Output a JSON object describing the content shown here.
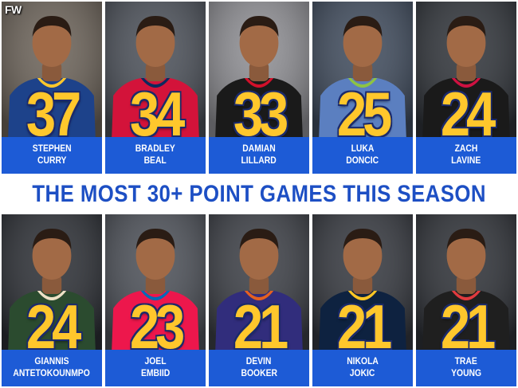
{
  "brand": "FW",
  "title": "THE MOST 30+ POINT GAMES THIS SEASON",
  "players": [
    {
      "first": "STEPHEN",
      "last": "CURRY",
      "count": "37",
      "jersey": "#1d428a",
      "trim": "#ffc72c",
      "bg": "#6b6258"
    },
    {
      "first": "BRADLEY",
      "last": "BEAL",
      "count": "34",
      "jersey": "#d3133a",
      "trim": "#0b2a5e",
      "bg": "#4a4f58"
    },
    {
      "first": "DAMIAN",
      "last": "LILLARD",
      "count": "33",
      "jersey": "#1a1a1a",
      "trim": "#d2102a",
      "bg": "#8e8e93"
    },
    {
      "first": "LUKA",
      "last": "DONCIC",
      "count": "25",
      "jersey": "#5b7fc0",
      "trim": "#8ec343",
      "bg": "#3e4a5c"
    },
    {
      "first": "ZACH",
      "last": "LAVINE",
      "count": "24",
      "jersey": "#1a1a1a",
      "trim": "#ce1141",
      "bg": "#2e3238"
    },
    {
      "first": "GIANNIS",
      "last": "ANTETOKOUNMPO",
      "count": "24",
      "jersey": "#2b4b2f",
      "trim": "#eee1c6",
      "bg": "#2a2d33"
    },
    {
      "first": "JOEL",
      "last": "EMBIID",
      "count": "23",
      "jersey": "#ed174c",
      "trim": "#006bb6",
      "bg": "#4b4f57"
    },
    {
      "first": "DEVIN",
      "last": "BOOKER",
      "count": "21",
      "jersey": "#312d7c",
      "trim": "#e56020",
      "bg": "#3a3d44"
    },
    {
      "first": "NIKOLA",
      "last": "JOKIC",
      "count": "21",
      "jersey": "#0e2240",
      "trim": "#fec524",
      "bg": "#33363d"
    },
    {
      "first": "TRAE",
      "last": "YOUNG",
      "count": "21",
      "jersey": "#1f1f1f",
      "trim": "#e03a3e",
      "bg": "#2c2f35"
    }
  ]
}
